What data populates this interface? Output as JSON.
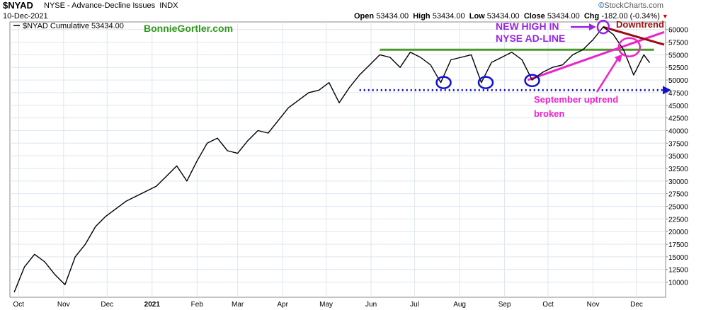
{
  "header": {
    "symbol": "$NYAD",
    "name": "NYSE - Advance-Decline Issues",
    "exchange": "INDX",
    "date": "10-Dec-2021",
    "open_label": "Open",
    "open": "53434.00",
    "high_label": "High",
    "high": "53434.00",
    "low_label": "Low",
    "low": "53434.00",
    "close_label": "Close",
    "close": "53434.00",
    "chg_label": "Chg",
    "chg": "-182.00 (-0.34%)",
    "chg_arrow": "▼",
    "brand_mark": "©",
    "brand_text": "StockCharts.com"
  },
  "legend": {
    "series_label": "$NYAD Cumulative 53434.00",
    "watermark": "BonnieGortler.com"
  },
  "annotations": {
    "new_high": [
      "NEW HIGH IN",
      "NYSE AD-LINE"
    ],
    "downtrend": "Downtrend",
    "uptrend": [
      "September uptrend",
      "broken"
    ]
  },
  "colors": {
    "price_line": "#000000",
    "grid": "#dfe6ee",
    "resistance": "#4a9a28",
    "support": "#1010d0",
    "new_high": "#9a22e6",
    "downtrend": "#9b0e0e",
    "uptrend": "#ee22cc",
    "watermark": "#2e9a1a"
  },
  "chart_data": {
    "type": "line",
    "title": "$NYAD NYSE - Advance-Decline Issues INDX",
    "series": [
      {
        "name": "$NYAD Cumulative",
        "points": [
          [
            "2020-09-28",
            8000
          ],
          [
            "2020-10-05",
            13000
          ],
          [
            "2020-10-12",
            15500
          ],
          [
            "2020-10-19",
            14000
          ],
          [
            "2020-10-26",
            11500
          ],
          [
            "2020-11-02",
            9500
          ],
          [
            "2020-11-09",
            15000
          ],
          [
            "2020-11-16",
            17500
          ],
          [
            "2020-11-23",
            21000
          ],
          [
            "2020-11-30",
            23000
          ],
          [
            "2020-12-07",
            24500
          ],
          [
            "2020-12-14",
            26000
          ],
          [
            "2020-12-21",
            27000
          ],
          [
            "2020-12-28",
            28000
          ],
          [
            "2021-01-04",
            29000
          ],
          [
            "2021-01-11",
            31000
          ],
          [
            "2021-01-18",
            33000
          ],
          [
            "2021-01-25",
            30000
          ],
          [
            "2021-02-01",
            34000
          ],
          [
            "2021-02-08",
            37500
          ],
          [
            "2021-02-15",
            38500
          ],
          [
            "2021-02-22",
            36000
          ],
          [
            "2021-03-01",
            35500
          ],
          [
            "2021-03-08",
            38000
          ],
          [
            "2021-03-15",
            40000
          ],
          [
            "2021-03-22",
            39500
          ],
          [
            "2021-03-29",
            42000
          ],
          [
            "2021-04-05",
            44500
          ],
          [
            "2021-04-12",
            46000
          ],
          [
            "2021-04-19",
            47500
          ],
          [
            "2021-04-26",
            48000
          ],
          [
            "2021-05-03",
            49500
          ],
          [
            "2021-05-10",
            45500
          ],
          [
            "2021-05-17",
            48500
          ],
          [
            "2021-05-24",
            51000
          ],
          [
            "2021-05-31",
            53000
          ],
          [
            "2021-06-07",
            55000
          ],
          [
            "2021-06-14",
            54500
          ],
          [
            "2021-06-21",
            52500
          ],
          [
            "2021-06-28",
            55500
          ],
          [
            "2021-07-05",
            54500
          ],
          [
            "2021-07-12",
            53000
          ],
          [
            "2021-07-19",
            49500
          ],
          [
            "2021-07-26",
            54000
          ],
          [
            "2021-08-02",
            54500
          ],
          [
            "2021-08-09",
            55000
          ],
          [
            "2021-08-16",
            49500
          ],
          [
            "2021-08-23",
            53500
          ],
          [
            "2021-08-30",
            54500
          ],
          [
            "2021-09-06",
            55500
          ],
          [
            "2021-09-13",
            54000
          ],
          [
            "2021-09-20",
            50000
          ],
          [
            "2021-09-27",
            51500
          ],
          [
            "2021-10-04",
            52500
          ],
          [
            "2021-10-11",
            53000
          ],
          [
            "2021-10-18",
            55000
          ],
          [
            "2021-10-25",
            56000
          ],
          [
            "2021-11-01",
            58000
          ],
          [
            "2021-11-08",
            60500
          ],
          [
            "2021-11-15",
            59000
          ],
          [
            "2021-11-22",
            56000
          ],
          [
            "2021-11-29",
            51000
          ],
          [
            "2021-12-06",
            55000
          ],
          [
            "2021-12-10",
            53434
          ]
        ]
      }
    ],
    "x_axis": {
      "ticks": [
        "Oct",
        "Nov",
        "Dec",
        "2021",
        "Feb",
        "Mar",
        "Apr",
        "May",
        "Jun",
        "Jul",
        "Aug",
        "Sep",
        "Oct",
        "Nov",
        "Dec"
      ],
      "bold": "2021"
    },
    "y_axis": {
      "position": "right",
      "ticks": [
        10000,
        12500,
        15000,
        17500,
        20000,
        22500,
        25000,
        27500,
        30000,
        32500,
        35000,
        37500,
        40000,
        42500,
        45000,
        47500,
        50000,
        52500,
        55000,
        57500,
        60000
      ],
      "ylim": [
        7000,
        61500
      ]
    },
    "grid": true,
    "trendlines": [
      {
        "name": "resistance",
        "from": [
          "2021-06-07",
          56000
        ],
        "to": [
          "2021-12-13",
          56000
        ]
      },
      {
        "name": "support",
        "from": [
          "2021-05-24",
          48000
        ],
        "to": [
          "2021-12-20",
          48000
        ]
      },
      {
        "name": "september-uptrend",
        "from": [
          "2021-09-17",
          50000
        ],
        "to": [
          "2021-12-20",
          59500
        ]
      },
      {
        "name": "downtrend",
        "from": [
          "2021-11-08",
          60500
        ],
        "to": [
          "2021-12-20",
          57000
        ]
      }
    ],
    "markers": [
      {
        "name": "low-jul",
        "at": [
          "2021-07-21",
          49500
        ]
      },
      {
        "name": "low-aug",
        "at": [
          "2021-08-19",
          49500
        ]
      },
      {
        "name": "low-sep",
        "at": [
          "2021-09-20",
          49900
        ]
      },
      {
        "name": "new-high",
        "at": [
          "2021-11-08",
          60500
        ]
      },
      {
        "name": "uptrend-break",
        "at": [
          "2021-11-26",
          56500
        ]
      }
    ]
  }
}
